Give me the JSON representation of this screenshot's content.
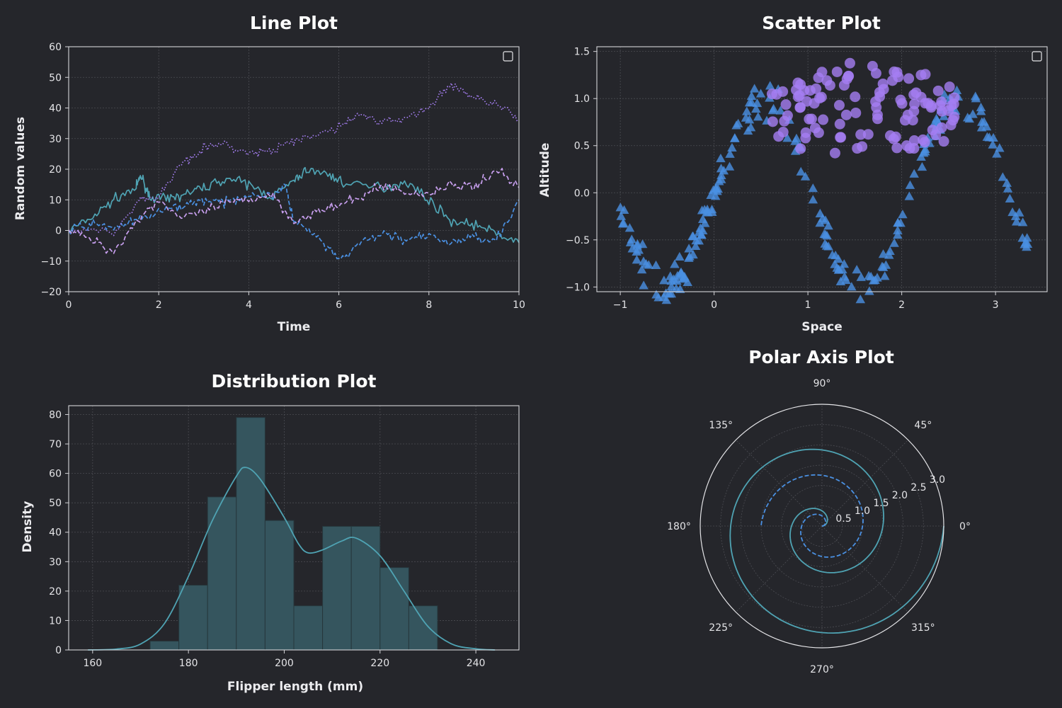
{
  "chart_data": [
    {
      "type": "line",
      "title": "Line Plot",
      "xlabel": "Time",
      "ylabel": "Random values",
      "xlim": [
        0,
        10
      ],
      "ylim": [
        -20,
        60
      ],
      "xticks": [
        "0",
        "2",
        "4",
        "6",
        "8",
        "10"
      ],
      "yticks": [
        "−20",
        "−10",
        "0",
        "10",
        "20",
        "30",
        "40",
        "50",
        "60"
      ],
      "grid": true,
      "legend": "empty box, top-right",
      "series": [
        {
          "style": "solid",
          "color": "#4fa3b3",
          "points": [
            [
              0,
              0
            ],
            [
              0.5,
              4
            ],
            [
              1,
              10
            ],
            [
              1.5,
              14
            ],
            [
              1.6,
              18
            ],
            [
              1.8,
              11
            ],
            [
              2.2,
              10
            ],
            [
              2.6,
              12
            ],
            [
              3,
              14
            ],
            [
              3.5,
              17
            ],
            [
              4,
              15
            ],
            [
              4.5,
              11
            ],
            [
              5,
              16
            ],
            [
              5.3,
              20
            ],
            [
              5.8,
              18
            ],
            [
              6.2,
              15
            ],
            [
              7,
              14
            ],
            [
              7.5,
              16
            ],
            [
              8,
              10
            ],
            [
              8.5,
              3
            ],
            [
              9,
              2
            ],
            [
              9.5,
              -1
            ],
            [
              10,
              -4
            ]
          ]
        },
        {
          "style": "dashed",
          "color": "#4a90e2",
          "points": [
            [
              0,
              0
            ],
            [
              0.5,
              2
            ],
            [
              1,
              1
            ],
            [
              1.5,
              3
            ],
            [
              2,
              6
            ],
            [
              2.5,
              8
            ],
            [
              3,
              10
            ],
            [
              3.5,
              9
            ],
            [
              4,
              12
            ],
            [
              4.5,
              11
            ],
            [
              4.8,
              15
            ],
            [
              5,
              3
            ],
            [
              5.5,
              -2
            ],
            [
              6,
              -10
            ],
            [
              6.5,
              -4
            ],
            [
              7,
              -1
            ],
            [
              7.5,
              -3
            ],
            [
              8,
              -2
            ],
            [
              8.5,
              -4
            ],
            [
              9,
              -2
            ],
            [
              9.5,
              -3
            ],
            [
              10,
              10
            ]
          ]
        },
        {
          "style": "dashed",
          "color": "#c9a0f0",
          "points": [
            [
              0,
              0
            ],
            [
              0.5,
              -3
            ],
            [
              1,
              -7
            ],
            [
              1.5,
              3
            ],
            [
              2,
              10
            ],
            [
              2.5,
              4
            ],
            [
              3,
              6
            ],
            [
              3.5,
              9
            ],
            [
              4,
              10
            ],
            [
              4.5,
              12
            ],
            [
              5,
              3
            ],
            [
              5.5,
              6
            ],
            [
              6,
              8
            ],
            [
              6.5,
              11
            ],
            [
              7,
              15
            ],
            [
              7.5,
              12
            ],
            [
              8,
              12
            ],
            [
              8.5,
              15
            ],
            [
              9,
              14
            ],
            [
              9.5,
              20
            ],
            [
              10,
              14
            ]
          ]
        },
        {
          "style": "dotted",
          "color": "#a57ef2",
          "points": [
            [
              0,
              0
            ],
            [
              1,
              0
            ],
            [
              1.6,
              10
            ],
            [
              2,
              11
            ],
            [
              2.5,
              22
            ],
            [
              3,
              27
            ],
            [
              3.5,
              28
            ],
            [
              4,
              25
            ],
            [
              4.5,
              26
            ],
            [
              5,
              29
            ],
            [
              5.5,
              31
            ],
            [
              6,
              34
            ],
            [
              6.5,
              38
            ],
            [
              7,
              35
            ],
            [
              7.5,
              37
            ],
            [
              8,
              40
            ],
            [
              8.5,
              48
            ],
            [
              9,
              43
            ],
            [
              9.5,
              42
            ],
            [
              10,
              36
            ]
          ]
        }
      ]
    },
    {
      "type": "scatter",
      "title": "Scatter Plot",
      "xlabel": "Space",
      "ylabel": "Altitude",
      "xlim": [
        -1.25,
        3.55
      ],
      "ylim": [
        -1.05,
        1.55
      ],
      "xticks": [
        "−1",
        "0",
        "1",
        "2",
        "3"
      ],
      "yticks": [
        "−1.0",
        "−0.5",
        "0.0",
        "0.5",
        "1.0",
        "1.5"
      ],
      "grid": true,
      "legend": "empty box, top-right",
      "series": [
        {
          "marker": "triangle",
          "color": "#4a90e2",
          "x_range": [
            -1,
            3.35
          ],
          "relation": "y = sin(3x) + noise"
        },
        {
          "marker": "circle",
          "color": "#a57ef2",
          "x_range": [
            0.6,
            2.6
          ],
          "relation": "semicircle cap around y = 0.85, noise"
        }
      ]
    },
    {
      "type": "bar",
      "title": "Distribution Plot",
      "xlabel": "Flipper length (mm)",
      "ylabel": "Density",
      "xlim": [
        155,
        249
      ],
      "ylim": [
        0,
        83
      ],
      "xticks": [
        "160",
        "180",
        "200",
        "220",
        "240"
      ],
      "yticks": [
        "0",
        "10",
        "20",
        "30",
        "40",
        "50",
        "60",
        "70",
        "80"
      ],
      "grid": true,
      "bin_edges": [
        172,
        178,
        184,
        190,
        196,
        202,
        208,
        214,
        220,
        226,
        232
      ],
      "values": [
        3,
        22,
        52,
        79,
        44,
        15,
        42,
        42,
        28,
        15
      ],
      "kde_points": [
        [
          159,
          0
        ],
        [
          165,
          0.3
        ],
        [
          170,
          2
        ],
        [
          175,
          9
        ],
        [
          180,
          25
        ],
        [
          185,
          44
        ],
        [
          190,
          59
        ],
        [
          192,
          62
        ],
        [
          195,
          58
        ],
        [
          200,
          45
        ],
        [
          203,
          36
        ],
        [
          205,
          33
        ],
        [
          208,
          34
        ],
        [
          212,
          37
        ],
        [
          215,
          38
        ],
        [
          220,
          32
        ],
        [
          225,
          20
        ],
        [
          230,
          8
        ],
        [
          235,
          2
        ],
        [
          240,
          0.4
        ],
        [
          244,
          0
        ]
      ],
      "color": "#4fa3b3"
    },
    {
      "type": "line",
      "title": "Polar Axis Plot",
      "angle_ticks": [
        "0°",
        "45°",
        "90°",
        "135°",
        "180°",
        "225°",
        "270°",
        "315°"
      ],
      "radial_ticks": [
        "0.5",
        "1.0",
        "1.5",
        "2.0",
        "2.5",
        "3.0"
      ],
      "rlim": [
        0,
        3.0
      ],
      "series": [
        {
          "style": "solid",
          "color": "#4fa3b3",
          "relation": "r = theta / (2·pi) · 1.5, theta in [0, 4·pi]"
        },
        {
          "style": "dashed",
          "color": "#4a90e2",
          "relation": "r = theta / (2·pi) · 1.0, theta in [0, 3·pi]"
        }
      ]
    }
  ]
}
